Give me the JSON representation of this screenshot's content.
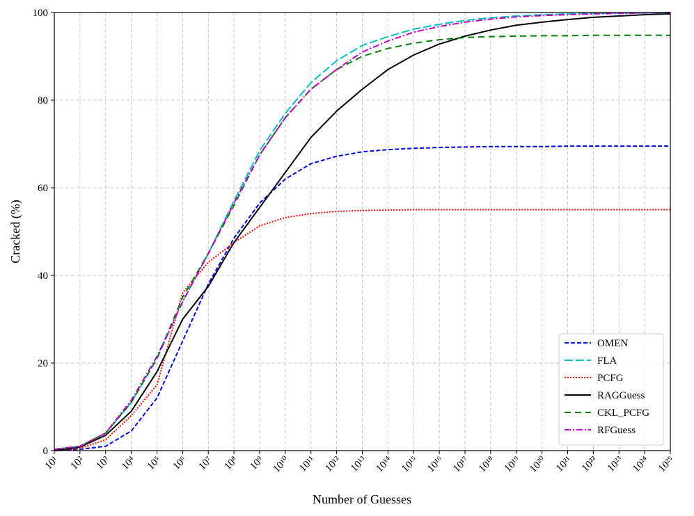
{
  "chart_data": {
    "type": "line",
    "xlabel": "Number of Guesses",
    "ylabel": "Cracked (%)",
    "xscale": "log",
    "grid": true,
    "legend": "lower right",
    "x": [
      10.0,
      100.0,
      1000.0,
      10000.0,
      100000.0,
      1000000.0,
      10000000.0,
      100000000.0,
      1000000000.0,
      10000000000.0,
      100000000000.0,
      1000000000000.0,
      10000000000000.0,
      100000000000000.0,
      1000000000000000.0,
      1e+16,
      1e+17,
      1e+18,
      1e+19,
      1e+20,
      1e+21,
      1e+22,
      1e+23,
      1e+24,
      1e+25
    ],
    "xlim": [
      10.0,
      1e+25
    ],
    "xticks": [
      {
        "value": 10.0,
        "label": "10¹"
      },
      {
        "value": 100.0,
        "label": "10²"
      },
      {
        "value": 1000.0,
        "label": "10³"
      },
      {
        "value": 10000.0,
        "label": "10⁴"
      },
      {
        "value": 100000.0,
        "label": "10⁵"
      },
      {
        "value": 1000000.0,
        "label": "10⁶"
      },
      {
        "value": 10000000.0,
        "label": "10⁷"
      },
      {
        "value": 100000000.0,
        "label": "10⁸"
      },
      {
        "value": 1000000000.0,
        "label": "10⁹"
      },
      {
        "value": 10000000000.0,
        "label": "10¹⁰"
      },
      {
        "value": 100000000000.0,
        "label": "10¹¹"
      },
      {
        "value": 1000000000000.0,
        "label": "10¹²"
      },
      {
        "value": 10000000000000.0,
        "label": "10¹³"
      },
      {
        "value": 100000000000000.0,
        "label": "10¹⁴"
      },
      {
        "value": 1000000000000000.0,
        "label": "10¹⁵"
      },
      {
        "value": 1e+16,
        "label": "10¹⁶"
      },
      {
        "value": 1e+17,
        "label": "10¹⁷"
      },
      {
        "value": 1e+18,
        "label": "10¹⁸"
      },
      {
        "value": 1e+19,
        "label": "10¹⁹"
      },
      {
        "value": 1e+20,
        "label": "10²⁰"
      },
      {
        "value": 1e+21,
        "label": "10²¹"
      },
      {
        "value": 1e+22,
        "label": "10²²"
      },
      {
        "value": 1e+23,
        "label": "10²³"
      },
      {
        "value": 1e+24,
        "label": "10²⁴"
      },
      {
        "value": 1e+25,
        "label": "10²⁵"
      }
    ],
    "ylim": [
      0,
      100
    ],
    "yticks": [
      0,
      20,
      40,
      60,
      80,
      100
    ],
    "series": [
      {
        "name": "OMEN",
        "color": "#0000e0",
        "linestyle": "dashed",
        "values": [
          0,
          0.3,
          1,
          4.5,
          12,
          25,
          38,
          48.5,
          56.5,
          62,
          65.5,
          67.2,
          68.2,
          68.7,
          69,
          69.2,
          69.3,
          69.4,
          69.4,
          69.4,
          69.5,
          69.5,
          69.5,
          69.5,
          69.5
        ]
      },
      {
        "name": "FLA",
        "color": "#00bfbf",
        "linestyle": "longdash",
        "values": [
          0.3,
          1,
          4,
          11,
          21,
          34,
          45,
          57,
          68.5,
          77,
          84,
          89,
          92.5,
          94.5,
          96.2,
          97.3,
          98.2,
          98.8,
          99.2,
          99.5,
          99.7,
          99.8,
          99.9,
          99.9,
          100
        ]
      },
      {
        "name": "PCFG",
        "color": "#ff0000",
        "linestyle": "dotted",
        "values": [
          0,
          0.5,
          2.5,
          8,
          15,
          36,
          43,
          47.5,
          51.3,
          53.2,
          54.1,
          54.6,
          54.8,
          54.9,
          55,
          55,
          55,
          55,
          55,
          55,
          55,
          55,
          55,
          55,
          55
        ]
      },
      {
        "name": "RAGGuess",
        "color": "#000000",
        "linestyle": "solid",
        "values": [
          0,
          0.8,
          3.5,
          9,
          18,
          30,
          37.5,
          47.5,
          55.5,
          63.5,
          71.5,
          77.5,
          82.5,
          87,
          90.3,
          92.8,
          94.6,
          96,
          97.1,
          97.8,
          98.4,
          98.9,
          99.2,
          99.5,
          99.7
        ]
      },
      {
        "name": "CKL_PCFG",
        "color": "#008000",
        "linestyle": "widedash",
        "values": [
          0.3,
          1,
          4,
          11,
          21,
          35,
          45,
          56,
          67.5,
          76,
          82.5,
          87,
          90,
          91.8,
          93,
          93.8,
          94.3,
          94.5,
          94.6,
          94.7,
          94.7,
          94.8,
          94.8,
          94.8,
          94.8
        ]
      },
      {
        "name": "RFGuess",
        "color": "#bf00bf",
        "linestyle": "dashdot",
        "values": [
          0.3,
          1,
          4,
          11.5,
          21.5,
          34,
          45,
          56.5,
          67.5,
          76,
          82.5,
          87,
          91,
          93.5,
          95.5,
          96.8,
          97.8,
          98.5,
          99,
          99.3,
          99.5,
          99.7,
          99.8,
          99.9,
          100
        ]
      }
    ]
  }
}
